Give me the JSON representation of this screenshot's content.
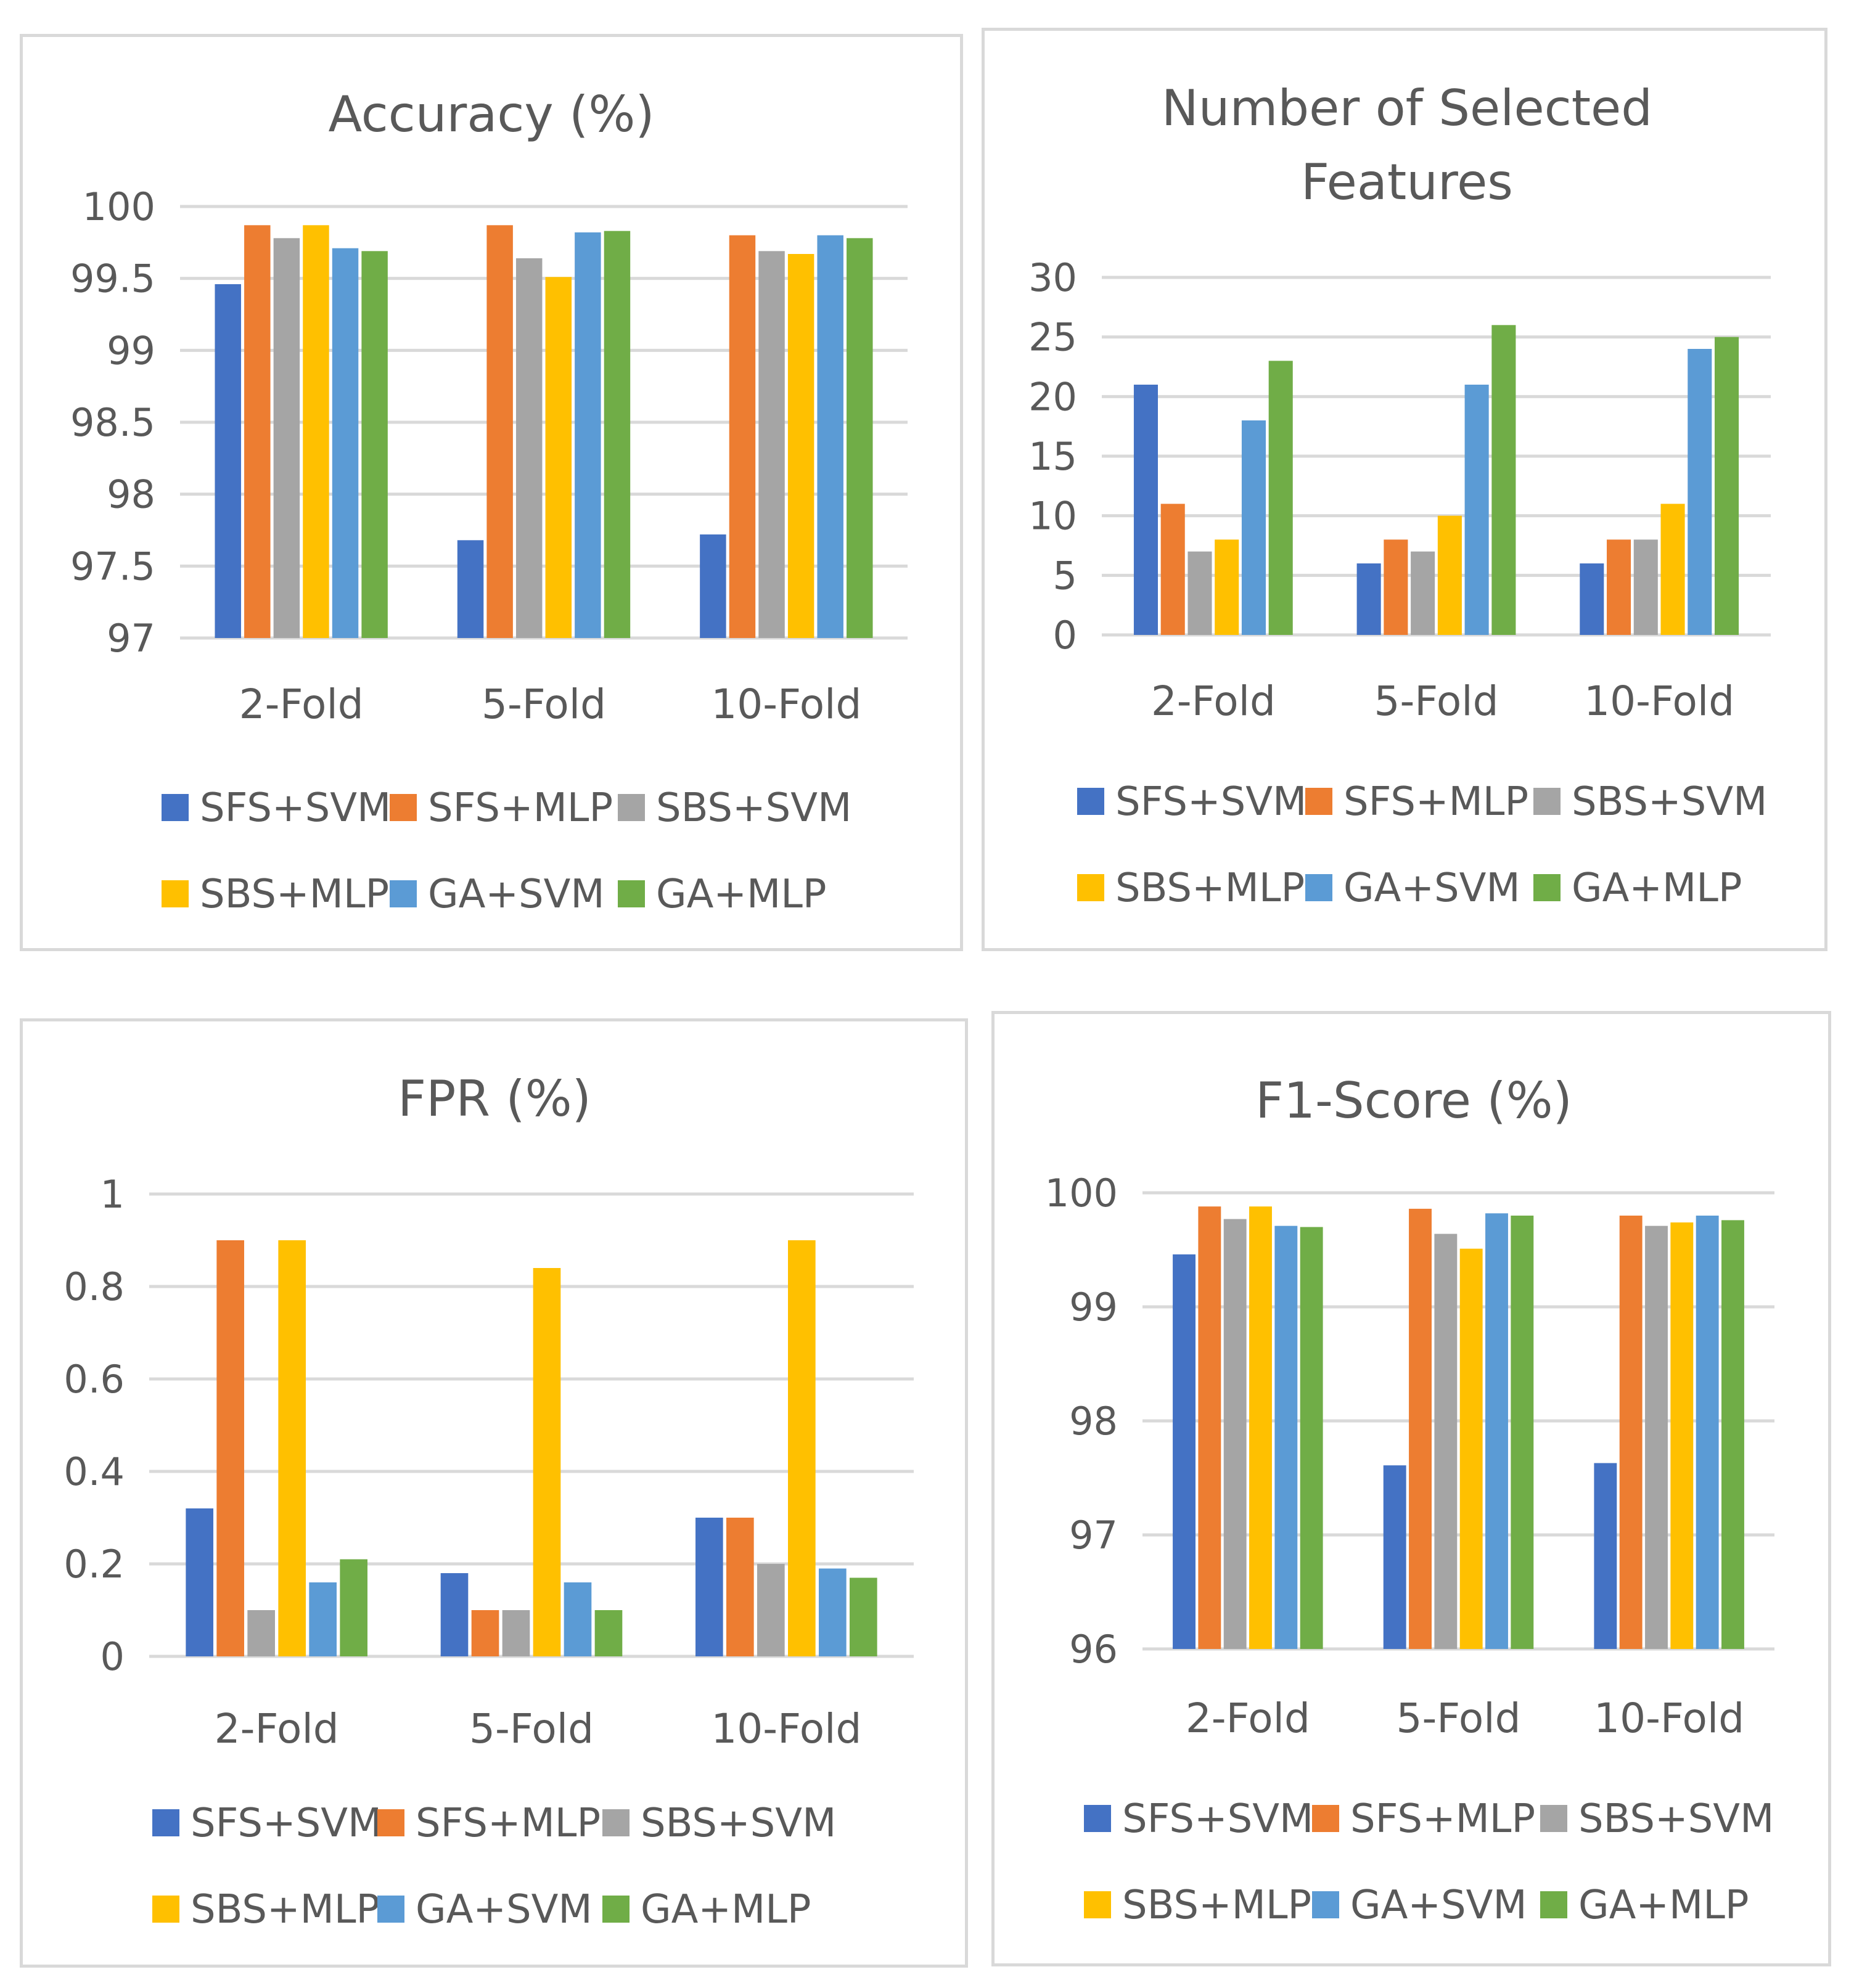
{
  "colors": {
    "series": [
      "#4472C4",
      "#ED7D31",
      "#A5A5A5",
      "#FFC000",
      "#5B9BD5",
      "#70AD47"
    ],
    "text": "#595959",
    "grid": "#d9d9d9"
  },
  "chart_data": [
    {
      "type": "bar",
      "title": "Accuracy (%)",
      "categories": [
        "2-Fold",
        "5-Fold",
        "10-Fold"
      ],
      "ylim": [
        97,
        100
      ],
      "yticks": [
        97,
        97.5,
        98,
        98.5,
        99,
        99.5,
        100
      ],
      "ytick_labels": [
        "97",
        "97.5",
        "98",
        "98.5",
        "99",
        "99.5",
        "100"
      ],
      "legend": "bottom",
      "series": [
        {
          "name": "SFS+SVM",
          "values": [
            99.46,
            97.68,
            97.72
          ]
        },
        {
          "name": "SFS+MLP",
          "values": [
            99.87,
            99.87,
            99.8
          ]
        },
        {
          "name": "SBS+SVM",
          "values": [
            99.78,
            99.64,
            99.69
          ]
        },
        {
          "name": "SBS+MLP",
          "values": [
            99.87,
            99.51,
            99.67
          ]
        },
        {
          "name": "GA+SVM",
          "values": [
            99.71,
            99.82,
            99.8
          ]
        },
        {
          "name": "GA+MLP",
          "values": [
            99.69,
            99.83,
            99.78
          ]
        }
      ]
    },
    {
      "type": "bar",
      "title": "Number of Selected Features",
      "title_lines": [
        "Number of Selected",
        "Features"
      ],
      "categories": [
        "2-Fold",
        "5-Fold",
        "10-Fold"
      ],
      "ylim": [
        0,
        30
      ],
      "yticks": [
        0,
        5,
        10,
        15,
        20,
        25,
        30
      ],
      "ytick_labels": [
        "0",
        "5",
        "10",
        "15",
        "20",
        "25",
        "30"
      ],
      "legend": "bottom",
      "series": [
        {
          "name": "SFS+SVM",
          "values": [
            21,
            6,
            6
          ]
        },
        {
          "name": "SFS+MLP",
          "values": [
            11,
            8,
            8
          ]
        },
        {
          "name": "SBS+SVM",
          "values": [
            7,
            7,
            8
          ]
        },
        {
          "name": "SBS+MLP",
          "values": [
            8,
            10,
            11
          ]
        },
        {
          "name": "GA+SVM",
          "values": [
            18,
            21,
            24
          ]
        },
        {
          "name": "GA+MLP",
          "values": [
            23,
            26,
            25
          ]
        }
      ]
    },
    {
      "type": "bar",
      "title": "FPR (%)",
      "categories": [
        "2-Fold",
        "5-Fold",
        "10-Fold"
      ],
      "ylim": [
        0,
        1
      ],
      "yticks": [
        0,
        0.2,
        0.4,
        0.6,
        0.8,
        1
      ],
      "ytick_labels": [
        "0",
        "0.2",
        "0.4",
        "0.6",
        "0.8",
        "1"
      ],
      "legend": "bottom",
      "series": [
        {
          "name": "SFS+SVM",
          "values": [
            0.32,
            0.18,
            0.3
          ]
        },
        {
          "name": "SFS+MLP",
          "values": [
            0.9,
            0.1,
            0.3
          ]
        },
        {
          "name": "SBS+SVM",
          "values": [
            0.1,
            0.1,
            0.2
          ]
        },
        {
          "name": "SBS+MLP",
          "values": [
            0.9,
            0.84,
            0.9
          ]
        },
        {
          "name": "GA+SVM",
          "values": [
            0.16,
            0.16,
            0.19
          ]
        },
        {
          "name": "GA+MLP",
          "values": [
            0.21,
            0.1,
            0.17
          ]
        }
      ]
    },
    {
      "type": "bar",
      "title": "F1-Score (%)",
      "categories": [
        "2-Fold",
        "5-Fold",
        "10-Fold"
      ],
      "ylim": [
        96,
        100
      ],
      "yticks": [
        96,
        97,
        98,
        99,
        100
      ],
      "ytick_labels": [
        "96",
        "97",
        "98",
        "99",
        "100"
      ],
      "legend": "bottom",
      "series": [
        {
          "name": "SFS+SVM",
          "values": [
            99.46,
            97.61,
            97.63
          ]
        },
        {
          "name": "SFS+MLP",
          "values": [
            99.88,
            99.86,
            99.8
          ]
        },
        {
          "name": "SBS+SVM",
          "values": [
            99.77,
            99.64,
            99.71
          ]
        },
        {
          "name": "SBS+MLP",
          "values": [
            99.88,
            99.51,
            99.74
          ]
        },
        {
          "name": "GA+SVM",
          "values": [
            99.71,
            99.82,
            99.8
          ]
        },
        {
          "name": "GA+MLP",
          "values": [
            99.7,
            99.8,
            99.76
          ]
        }
      ]
    }
  ]
}
